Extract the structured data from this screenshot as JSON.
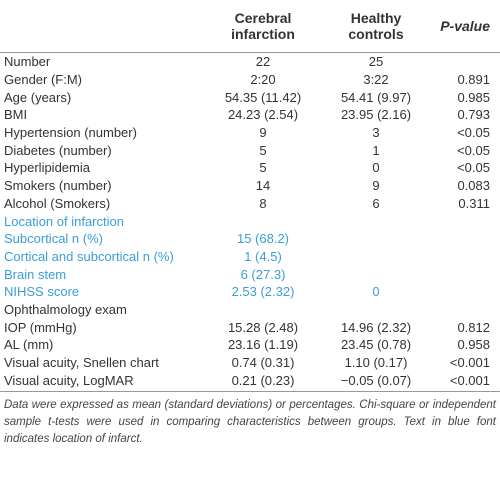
{
  "table": {
    "header": [
      null,
      "Cerebral infarction",
      "Healthy controls",
      "P-value"
    ],
    "rows": [
      [
        "Number",
        "22",
        "25",
        null
      ],
      [
        "Gender (F:M)",
        "2:20",
        "3:22",
        "0.891"
      ],
      [
        "Age (years)",
        "54.35 (11.42)",
        "54.41 (9.97)",
        "0.985"
      ],
      [
        "BMI",
        "24.23 (2.54)",
        "23.95 (2.16)",
        "0.793"
      ],
      [
        "Hypertension (number)",
        "9",
        "3",
        "<0.05"
      ],
      [
        "Diabetes (number)",
        "5",
        "1",
        "<0.05"
      ],
      [
        "Hyperlipidemia",
        "5",
        "0",
        "<0.05"
      ],
      [
        "Smokers (number)",
        "14",
        "9",
        "0.083"
      ],
      [
        "Alcohol (Smokers)",
        "8",
        "6",
        "0.311"
      ],
      [
        "Location of infarction",
        null,
        null,
        null
      ],
      [
        "Subcortical n (%)",
        "15 (68.2)",
        null,
        null
      ],
      [
        "Cortical and subcortical n (%)",
        "1 (4.5)",
        null,
        null
      ],
      [
        "Brain stem",
        "6 (27.3)",
        null,
        null
      ],
      [
        "NIHSS score",
        "2.53 (2.32)",
        "0",
        null
      ],
      [
        "Ophthalmology exam",
        null,
        null,
        null
      ],
      [
        "IOP (mmHg)",
        "15.28 (2.48)",
        "14.96 (2.32)",
        "0.812"
      ],
      [
        "AL (mm)",
        "23.16 (1.19)",
        "23.45 (0.78)",
        "0.958"
      ],
      [
        "Visual acuity, Snellen chart",
        "0.74 (0.31)",
        "1.10 (0.17)",
        "<0.001"
      ],
      [
        "Visual acuity, LogMAR",
        "0.21 (0.23)",
        "−0.05 (0.07)",
        "<0.001"
      ]
    ],
    "highlight_rows": [
      9,
      10,
      11,
      12,
      13
    ],
    "highlight_color": "#3a9fd6",
    "footnote": "Data were expressed as mean (standard deviations) or percentages. Chi-square or independent sample t-tests were used in comparing characteristics between groups. Text in blue font indicates location of infarct."
  }
}
